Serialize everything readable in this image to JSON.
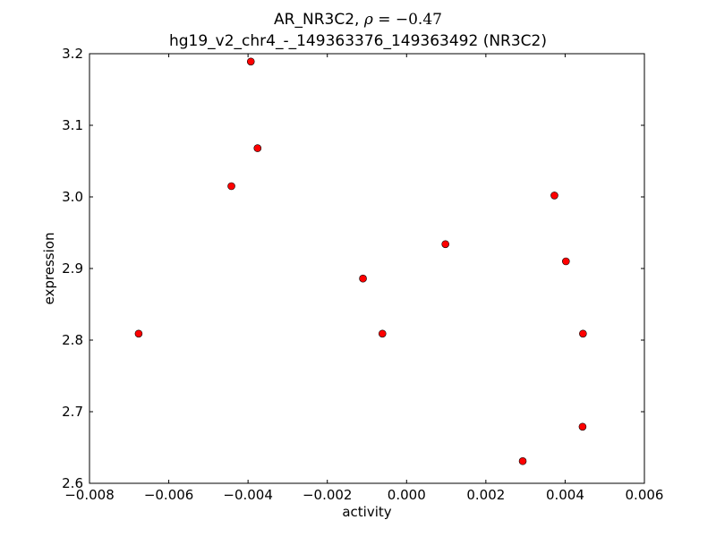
{
  "chart_data": {
    "type": "scatter",
    "title_prefix": "AR_NR3C2, ",
    "title_rho_symbol": "ρ",
    "title_rho_value": " = −0.47",
    "subtitle": "hg19_v2_chr4_-_149363376_149363492 (NR3C2)",
    "xlabel": "activity",
    "ylabel": "expression",
    "xlim": [
      -0.008,
      0.006
    ],
    "ylim": [
      2.6,
      3.2
    ],
    "x_ticks": [
      -0.008,
      -0.006,
      -0.004,
      -0.002,
      0.0,
      0.002,
      0.004,
      0.006
    ],
    "x_tick_labels": [
      "−0.008",
      "−0.006",
      "−0.004",
      "−0.002",
      "0.000",
      "0.002",
      "0.004",
      "0.006"
    ],
    "y_ticks": [
      2.6,
      2.7,
      2.8,
      2.9,
      3.0,
      3.1,
      3.2
    ],
    "y_tick_labels": [
      "2.6",
      "2.7",
      "2.8",
      "2.9",
      "3.0",
      "3.1",
      "3.2"
    ],
    "grid": false,
    "marker_color": "#ff0000",
    "marker_edge_color": "#000000",
    "points": [
      {
        "x": -0.00676,
        "y": 2.809
      },
      {
        "x": -0.00442,
        "y": 3.015
      },
      {
        "x": -0.00393,
        "y": 3.189
      },
      {
        "x": -0.00376,
        "y": 3.068
      },
      {
        "x": -0.0011,
        "y": 2.886
      },
      {
        "x": -0.00061,
        "y": 2.809
      },
      {
        "x": 0.00098,
        "y": 2.934
      },
      {
        "x": 0.00293,
        "y": 2.631
      },
      {
        "x": 0.00373,
        "y": 3.002
      },
      {
        "x": 0.00402,
        "y": 2.91
      },
      {
        "x": 0.00444,
        "y": 2.679
      },
      {
        "x": 0.00445,
        "y": 2.809
      }
    ]
  }
}
